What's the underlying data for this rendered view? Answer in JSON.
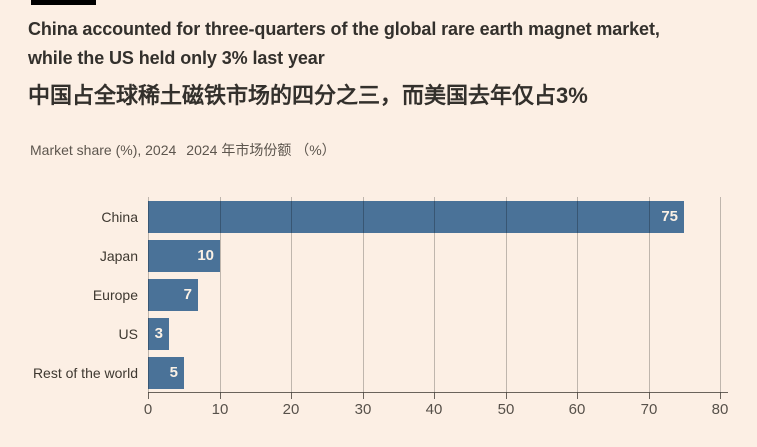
{
  "page": {
    "background": "#FCEFE4"
  },
  "header": {
    "title_en_lines": [
      "China accounted for three-quarters of the global rare earth magnet market,",
      "while the US held only 3% last year"
    ],
    "title_zh": "中国占全球稀土磁铁市场的四分之三，而美国去年仅占3%",
    "subtitle_en": "Market share (%), 2024",
    "subtitle_zh": "2024 年市场份额 （%）"
  },
  "chart_data": {
    "type": "bar",
    "orientation": "horizontal",
    "title": "Market share (%), 2024",
    "title_zh": "2024 年市场份额 （%）",
    "categories": [
      "China",
      "Japan",
      "Europe",
      "US",
      "Rest of the world"
    ],
    "values": [
      75,
      10,
      7,
      3,
      5
    ],
    "unit": "%",
    "xlabel": "",
    "ylabel": "",
    "xlim": [
      0,
      80
    ],
    "xticks": [
      0,
      10,
      20,
      30,
      40,
      50,
      60,
      70,
      80
    ],
    "grid": true,
    "legend": "none",
    "bar_color": "#4A7298",
    "value_label_color": "#FBF1E5",
    "gridline_color": "rgba(0,0,0,0.24)",
    "axis_color": "#6A635B",
    "background_color": "#FCEFE4",
    "text_color": "#33302C"
  }
}
